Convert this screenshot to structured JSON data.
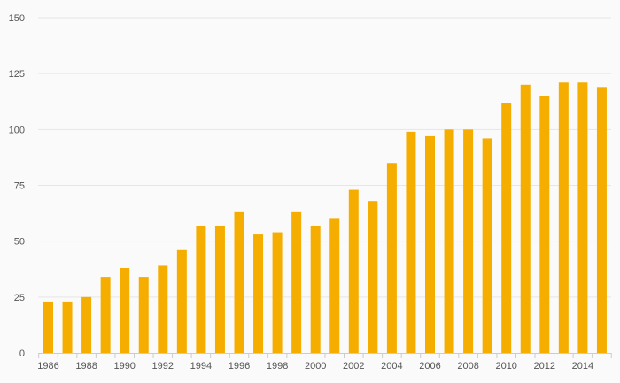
{
  "chart_data": {
    "type": "bar",
    "categories": [
      "1986",
      "1987",
      "1988",
      "1989",
      "1990",
      "1991",
      "1992",
      "1993",
      "1994",
      "1995",
      "1996",
      "1997",
      "1998",
      "1999",
      "2000",
      "2001",
      "2002",
      "2003",
      "2004",
      "2005",
      "2006",
      "2007",
      "2008",
      "2009",
      "2010",
      "2011",
      "2012",
      "2013",
      "2014",
      "2015"
    ],
    "x_tick_labels": [
      "1986",
      "1988",
      "1990",
      "1992",
      "1994",
      "1996",
      "1998",
      "2000",
      "2002",
      "2004",
      "2006",
      "2008",
      "2010",
      "2012",
      "2014"
    ],
    "values": [
      23,
      23,
      25,
      34,
      38,
      34,
      39,
      46,
      57,
      57,
      63,
      53,
      54,
      63,
      57,
      60,
      73,
      68,
      85,
      99,
      97,
      100,
      100,
      96,
      112,
      120,
      115,
      121,
      121,
      119
    ],
    "y_ticks": [
      "0",
      "25",
      "50",
      "75",
      "100",
      "125",
      "150"
    ],
    "ylim": [
      0,
      150
    ],
    "grid": true,
    "bar_color": "#f5ad00",
    "grid_color": "#e6e6e6",
    "axis_color": "#cccccc"
  }
}
